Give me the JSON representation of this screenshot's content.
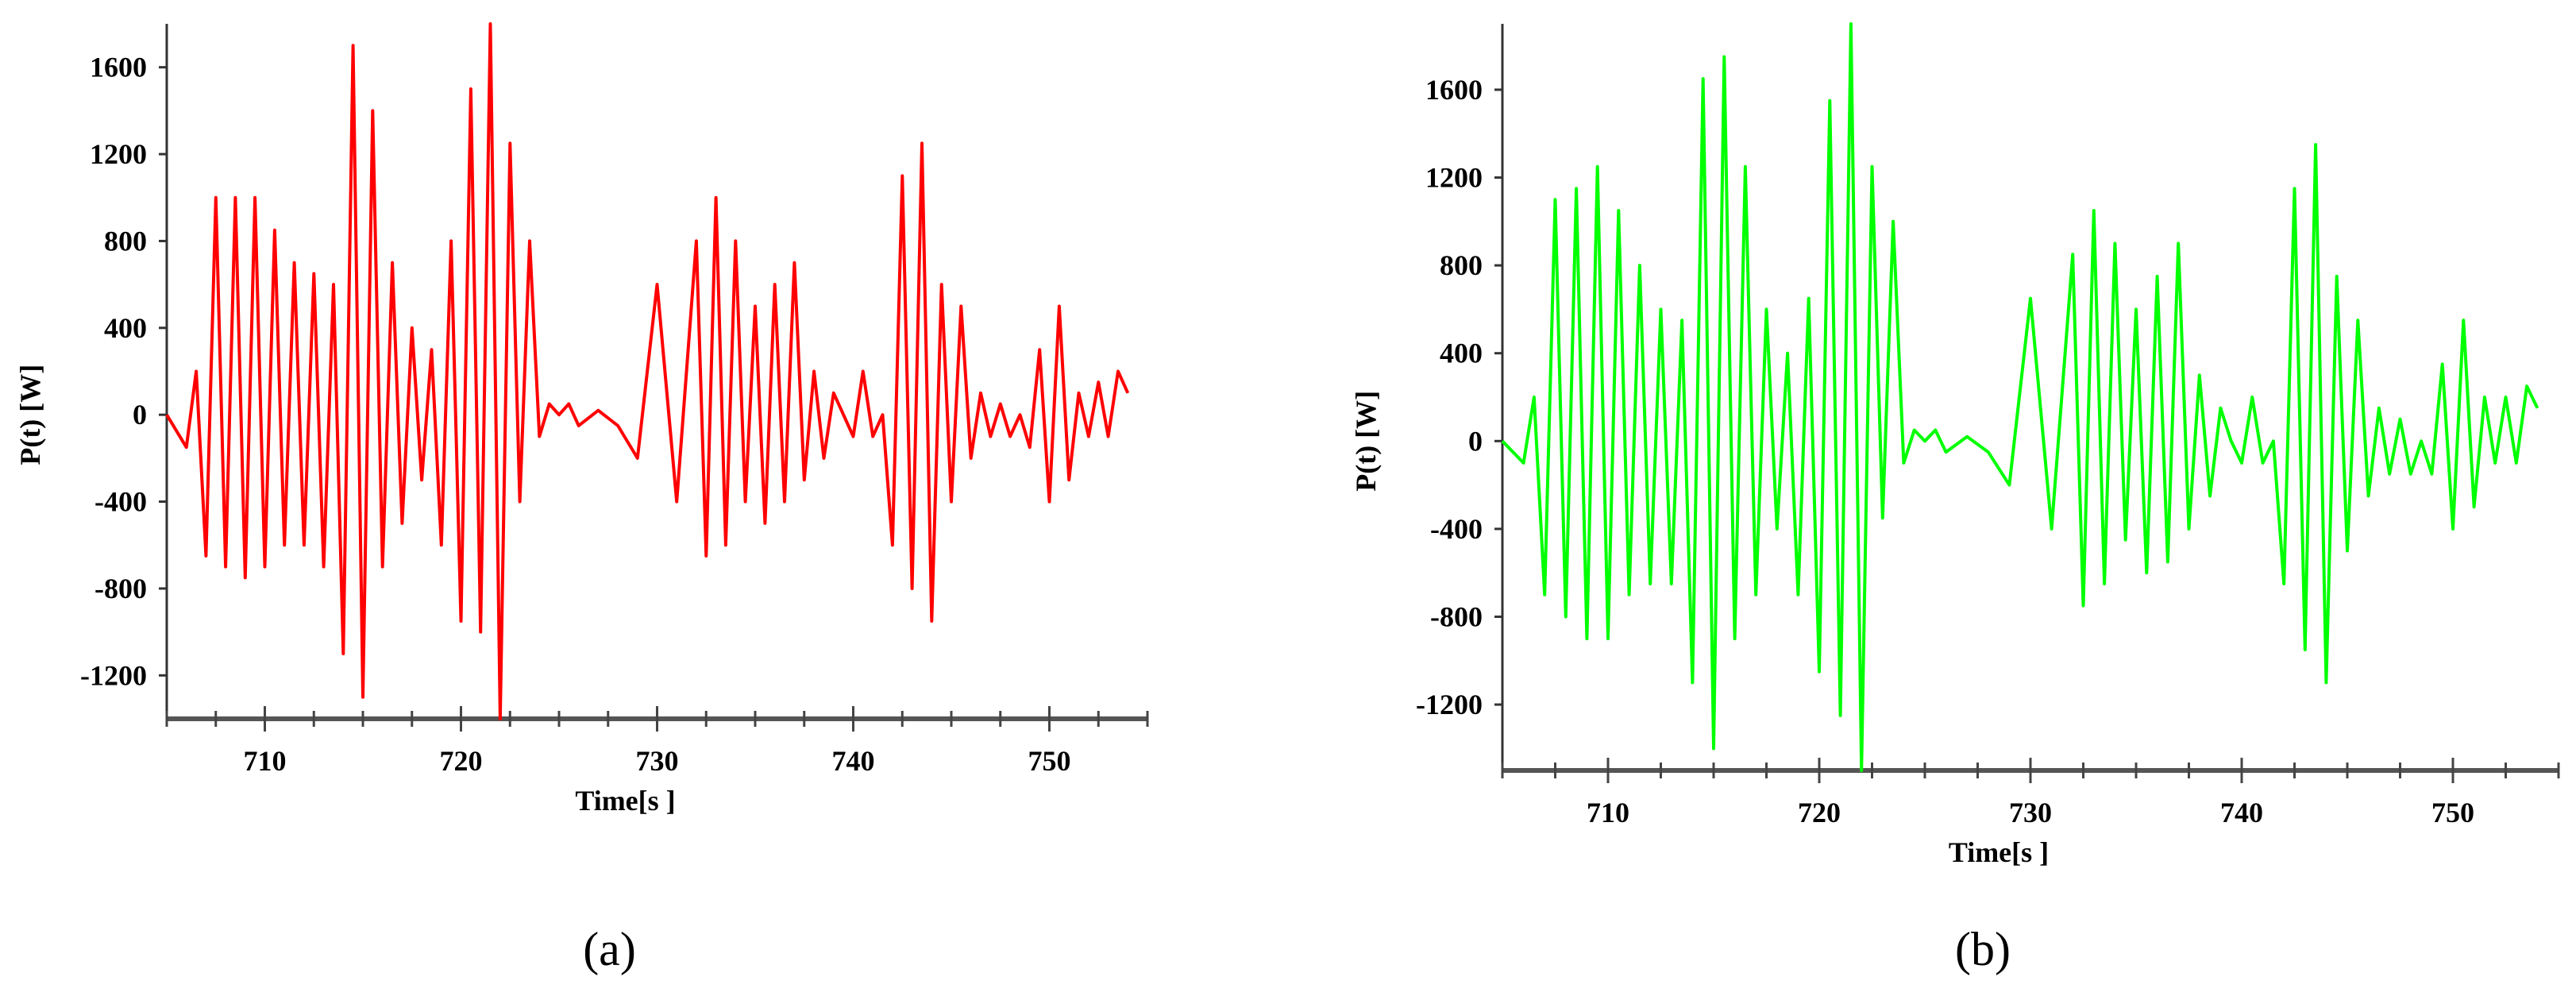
{
  "figure": {
    "panels": [
      {
        "label": "(a)",
        "color": "#ff0000"
      },
      {
        "label": "(b)",
        "color": "#00ff00"
      }
    ]
  },
  "chart_data": [
    {
      "type": "line",
      "panel": "(a)",
      "xlabel": "Time[s ]",
      "ylabel": "P(t)  [W]",
      "xlim": [
        705,
        755
      ],
      "ylim": [
        -1400,
        1800
      ],
      "xticks": [
        710,
        720,
        730,
        740,
        750
      ],
      "yticks": [
        -1200,
        -800,
        -400,
        0,
        400,
        800,
        1200,
        1600
      ],
      "grid": false,
      "series": [
        {
          "color": "#ff0000",
          "x": [
            705,
            706,
            706.5,
            707,
            707.5,
            708,
            708.5,
            709,
            709.5,
            710,
            710.5,
            711,
            711.5,
            712,
            712.5,
            713,
            713.5,
            714,
            714.5,
            715,
            715.5,
            716,
            716.5,
            717,
            717.5,
            718,
            718.5,
            719,
            719.5,
            720,
            720.5,
            721,
            721.5,
            722,
            722.5,
            723,
            723.5,
            724,
            724.5,
            725,
            725.5,
            726,
            727,
            728,
            729,
            730,
            731,
            732,
            732.5,
            733,
            733.5,
            734,
            734.5,
            735,
            735.5,
            736,
            736.5,
            737,
            737.5,
            738,
            738.5,
            739,
            739.5,
            740,
            740.5,
            741,
            741.5,
            742,
            742.5,
            743,
            743.5,
            744,
            744.5,
            745,
            745.5,
            746,
            746.5,
            747,
            747.5,
            748,
            748.5,
            749,
            749.5,
            750,
            750.5,
            751,
            751.5,
            752,
            752.5,
            753,
            753.5,
            754
          ],
          "y": [
            0,
            -150,
            200,
            -650,
            1000,
            -700,
            1000,
            -750,
            1000,
            -700,
            850,
            -600,
            700,
            -600,
            650,
            -700,
            600,
            -1100,
            1700,
            -1300,
            1400,
            -700,
            700,
            -500,
            400,
            -300,
            300,
            -600,
            800,
            -950,
            1500,
            -1000,
            1800,
            -1400,
            1250,
            -400,
            800,
            -100,
            50,
            0,
            50,
            -50,
            20,
            -50,
            -200,
            600,
            -400,
            800,
            -650,
            1000,
            -600,
            800,
            -400,
            500,
            -500,
            600,
            -400,
            700,
            -300,
            200,
            -200,
            100,
            0,
            -100,
            200,
            -100,
            0,
            -600,
            1100,
            -800,
            1250,
            -950,
            600,
            -400,
            500,
            -200,
            100,
            -100,
            50,
            -100,
            0,
            -150,
            300,
            -400,
            500,
            -300,
            100,
            -100,
            150,
            -100,
            200,
            100
          ]
        }
      ]
    },
    {
      "type": "line",
      "panel": "(b)",
      "xlabel": "Time[s ]",
      "ylabel": "P(t)  [W]",
      "xlim": [
        705,
        755
      ],
      "ylim": [
        -1500,
        1900
      ],
      "xticks": [
        710,
        720,
        730,
        740,
        750
      ],
      "yticks": [
        -1200,
        -800,
        -400,
        0,
        400,
        800,
        1200,
        1600
      ],
      "grid": false,
      "series": [
        {
          "color": "#00ff00",
          "x": [
            705,
            706,
            706.5,
            707,
            707.5,
            708,
            708.5,
            709,
            709.5,
            710,
            710.5,
            711,
            711.5,
            712,
            712.5,
            713,
            713.5,
            714,
            714.5,
            715,
            715.5,
            716,
            716.5,
            717,
            717.5,
            718,
            718.5,
            719,
            719.5,
            720,
            720.5,
            721,
            721.5,
            722,
            722.5,
            723,
            723.5,
            724,
            724.5,
            725,
            725.5,
            726,
            727,
            728,
            729,
            730,
            731,
            732,
            732.5,
            733,
            733.5,
            734,
            734.5,
            735,
            735.5,
            736,
            736.5,
            737,
            737.5,
            738,
            738.5,
            739,
            739.5,
            740,
            740.5,
            741,
            741.5,
            742,
            742.5,
            743,
            743.5,
            744,
            744.5,
            745,
            745.5,
            746,
            746.5,
            747,
            747.5,
            748,
            748.5,
            749,
            749.5,
            750,
            750.5,
            751,
            751.5,
            752,
            752.5,
            753,
            753.5,
            754
          ],
          "y": [
            0,
            -100,
            200,
            -700,
            1100,
            -800,
            1150,
            -900,
            1250,
            -900,
            1050,
            -700,
            800,
            -650,
            600,
            -650,
            550,
            -1100,
            1650,
            -1400,
            1750,
            -900,
            1250,
            -700,
            600,
            -400,
            400,
            -700,
            650,
            -1050,
            1550,
            -1250,
            1900,
            -1500,
            1250,
            -350,
            1000,
            -100,
            50,
            0,
            50,
            -50,
            20,
            -50,
            -200,
            650,
            -400,
            850,
            -750,
            1050,
            -650,
            900,
            -450,
            600,
            -600,
            750,
            -550,
            900,
            -400,
            300,
            -250,
            150,
            0,
            -100,
            200,
            -100,
            0,
            -650,
            1150,
            -950,
            1350,
            -1100,
            750,
            -500,
            550,
            -250,
            150,
            -150,
            100,
            -150,
            0,
            -150,
            350,
            -400,
            550,
            -300,
            200,
            -100,
            200,
            -100,
            250,
            150
          ]
        }
      ]
    }
  ]
}
